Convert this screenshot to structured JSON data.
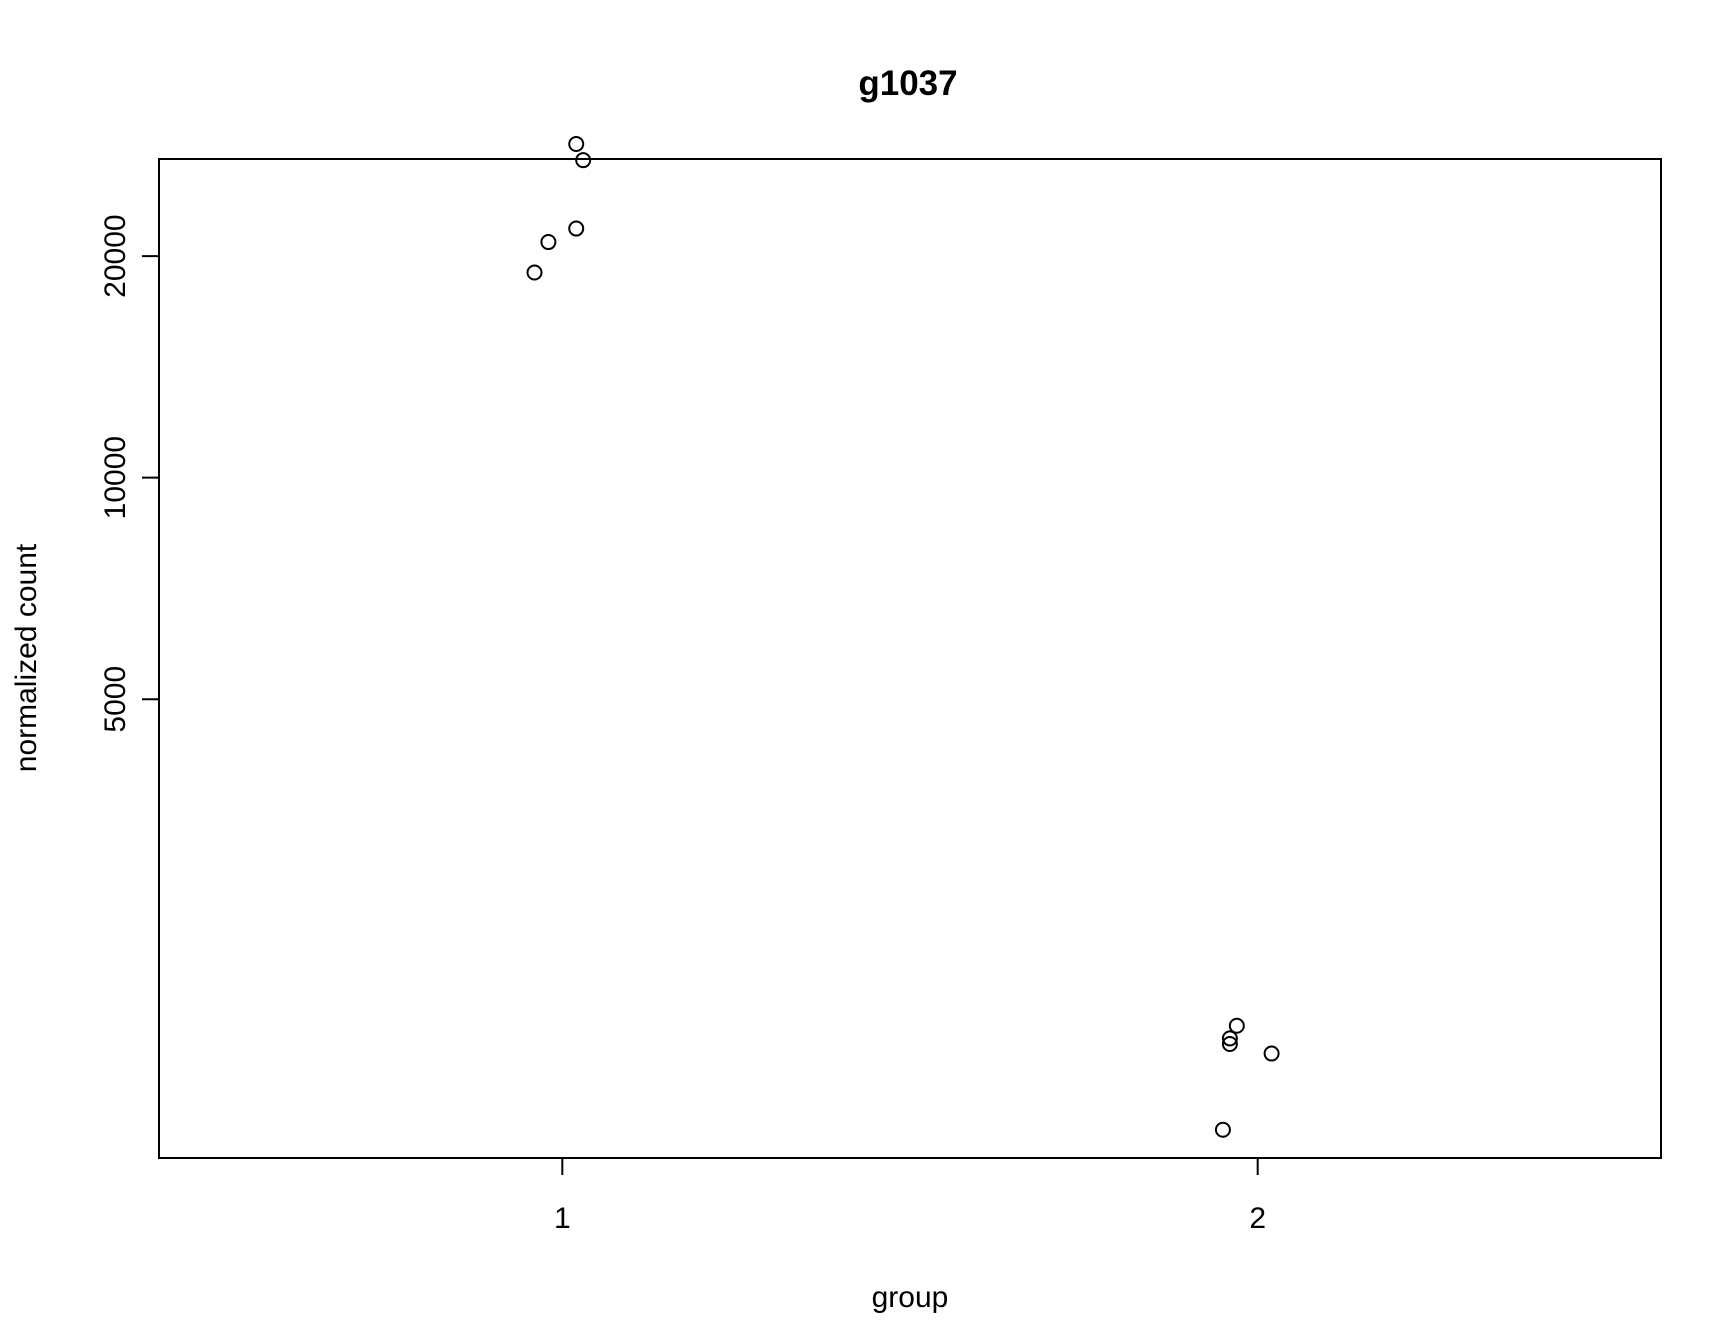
{
  "chart_data": {
    "type": "scatter",
    "title": "g1037",
    "xlabel": "group",
    "ylabel": "normalized count",
    "y_scale": "log",
    "xlim": [
      0.42,
      2.58
    ],
    "ylim": [
      1190,
      27100
    ],
    "x_ticks": [
      {
        "value": 1,
        "label": "1"
      },
      {
        "value": 2,
        "label": "2"
      }
    ],
    "y_ticks": [
      {
        "value": 5000,
        "label": "5000"
      },
      {
        "value": 10000,
        "label": "10000"
      },
      {
        "value": 20000,
        "label": "20000"
      }
    ],
    "grid": false,
    "legend": false,
    "series": [
      {
        "points": [
          {
            "x": 0.96,
            "y": 19000
          },
          {
            "x": 0.98,
            "y": 20900
          },
          {
            "x": 1.02,
            "y": 21800
          },
          {
            "x": 1.02,
            "y": 28400
          },
          {
            "x": 1.03,
            "y": 27000
          },
          {
            "x": 1.95,
            "y": 1300
          },
          {
            "x": 1.96,
            "y": 1730
          },
          {
            "x": 1.96,
            "y": 1700
          },
          {
            "x": 1.97,
            "y": 1800
          },
          {
            "x": 2.02,
            "y": 1650
          }
        ]
      }
    ]
  }
}
